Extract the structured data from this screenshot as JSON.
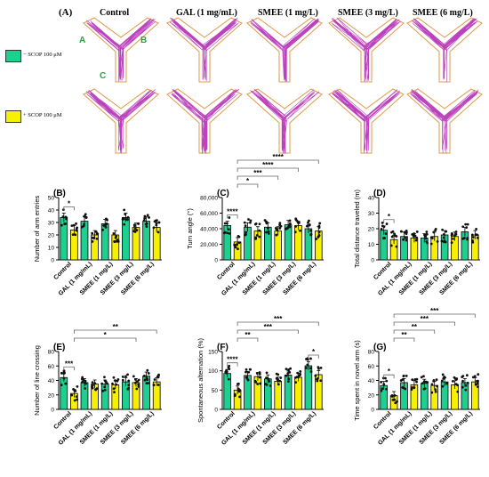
{
  "figure": {
    "panel_label": "(A)",
    "columns": [
      "Control",
      "GAL (1 mg/mL)",
      "SMEE (1 mg/L)",
      "SMEE (3 mg/L)",
      "SMEE (6 mg/L)"
    ],
    "legend": [
      {
        "label": "− SCOP 100 μM",
        "color": "#1fcf8f"
      },
      {
        "label": "+ SCOP 100 μM",
        "color": "#f7f000"
      }
    ],
    "arm_labels": [
      "A",
      "B",
      "C"
    ],
    "colors": {
      "minus": "#1fcf8f",
      "plus": "#f7f000",
      "track": "#b020b0",
      "maze_outline": "#e09a4a",
      "bracket": "#666666"
    }
  },
  "chart_data": [
    {
      "panel": "(B)",
      "type": "bar",
      "ylabel": "Number of arm entries",
      "ylim": [
        0,
        50
      ],
      "yticks": [
        "0",
        "10",
        "20",
        "30",
        "40",
        "50"
      ],
      "categories": [
        "Control",
        "GAL (1 mg/mL)",
        "SMEE (1 mg/L)",
        "SMEE (3 mg/L)",
        "SMEE (6 mg/L)"
      ],
      "series": [
        {
          "values": [
            34,
            31,
            29,
            34,
            31
          ]
        },
        {
          "values": [
            24,
            20,
            20,
            26,
            26
          ]
        }
      ],
      "significance": [
        {
          "from": 0,
          "to": 1,
          "label": "*"
        }
      ]
    },
    {
      "panel": "(C)",
      "type": "bar",
      "ylabel": "Turn angle (°)",
      "ylim": [
        0,
        80000
      ],
      "yticks": [
        "0",
        "20,000",
        "40,000",
        "60,000",
        "80,000"
      ],
      "categories": [
        "Control",
        "GAL (1 mg/mL)",
        "SMEE (1 mg/L)",
        "SMEE (3 mg/L)",
        "SMEE (6 mg/L)"
      ],
      "series": [
        {
          "values": [
            44000,
            42000,
            42000,
            45000,
            40000
          ]
        },
        {
          "values": [
            23000,
            37000,
            37000,
            44000,
            37000
          ]
        }
      ],
      "significance": [
        {
          "from": 0,
          "to": 1,
          "label": "****"
        },
        {
          "from": 1,
          "to": 3,
          "label": "*"
        },
        {
          "from": 1,
          "to": 5,
          "label": "***"
        },
        {
          "from": 1,
          "to": 7,
          "label": "****"
        },
        {
          "from": 1,
          "to": 9,
          "label": "****"
        }
      ]
    },
    {
      "panel": "(D)",
      "type": "bar",
      "ylabel": "Total distance traveled (m)",
      "ylim": [
        0,
        40
      ],
      "yticks": [
        "0",
        "10",
        "20",
        "30",
        "40"
      ],
      "categories": [
        "Control",
        "GAL (1 mg/mL)",
        "SMEE (1 mg/L)",
        "SMEE (3 mg/L)",
        "SMEE (6 mg/L)"
      ],
      "series": [
        {
          "values": [
            19,
            15,
            14,
            16,
            18
          ]
        },
        {
          "values": [
            13,
            14,
            15,
            15,
            16
          ]
        }
      ],
      "significance": [
        {
          "from": 0,
          "to": 1,
          "label": "*"
        }
      ]
    },
    {
      "panel": "(E)",
      "type": "bar",
      "ylabel": "Number of line crossing",
      "ylim": [
        0,
        80
      ],
      "yticks": [
        "0",
        "20",
        "40",
        "60",
        "80"
      ],
      "categories": [
        "Control",
        "GAL (1 mg/mL)",
        "SMEE (1 mg/L)",
        "SMEE (3 mg/L)",
        "SMEE (6 mg/L)"
      ],
      "series": [
        {
          "values": [
            44,
            37,
            35,
            38,
            46
          ]
        },
        {
          "values": [
            22,
            35,
            34,
            37,
            38
          ]
        }
      ],
      "significance": [
        {
          "from": 0,
          "to": 1,
          "label": "***"
        },
        {
          "from": 1,
          "to": 7,
          "label": "*"
        },
        {
          "from": 1,
          "to": 9,
          "label": "**"
        }
      ]
    },
    {
      "panel": "(F)",
      "type": "bar",
      "ylabel": "Spontaneous alternation (%)",
      "ylim": [
        0,
        150
      ],
      "yticks": [
        "0",
        "50",
        "100",
        "150"
      ],
      "categories": [
        "Control",
        "GAL (1 mg/mL)",
        "SMEE (1 mg/L)",
        "SMEE (3 mg/L)",
        "SMEE (6 mg/L)"
      ],
      "series": [
        {
          "values": [
            93,
            88,
            79,
            89,
            113
          ]
        },
        {
          "values": [
            50,
            85,
            73,
            83,
            90
          ]
        }
      ],
      "significance": [
        {
          "from": 0,
          "to": 1,
          "label": "****"
        },
        {
          "from": 1,
          "to": 3,
          "label": "**"
        },
        {
          "from": 1,
          "to": 7,
          "label": "***"
        },
        {
          "from": 1,
          "to": 9,
          "label": "***"
        },
        {
          "from": 8,
          "to": 9,
          "label": "*"
        }
      ]
    },
    {
      "panel": "(G)",
      "type": "bar",
      "ylabel": "Time spent in novel arm (s)",
      "ylim": [
        0,
        80
      ],
      "yticks": [
        "0",
        "20",
        "40",
        "60",
        "80"
      ],
      "categories": [
        "Control",
        "GAL (1 mg/mL)",
        "SMEE (1 mg/L)",
        "SMEE (3 mg/L)",
        "SMEE (6 mg/L)"
      ],
      "series": [
        {
          "values": [
            33,
            37,
            36,
            38,
            37
          ]
        },
        {
          "values": [
            19,
            34,
            33,
            34,
            38
          ]
        }
      ],
      "significance": [
        {
          "from": 0,
          "to": 1,
          "label": "*"
        },
        {
          "from": 1,
          "to": 3,
          "label": "**"
        },
        {
          "from": 1,
          "to": 5,
          "label": "**"
        },
        {
          "from": 1,
          "to": 7,
          "label": "***"
        },
        {
          "from": 1,
          "to": 9,
          "label": "***"
        }
      ]
    }
  ]
}
